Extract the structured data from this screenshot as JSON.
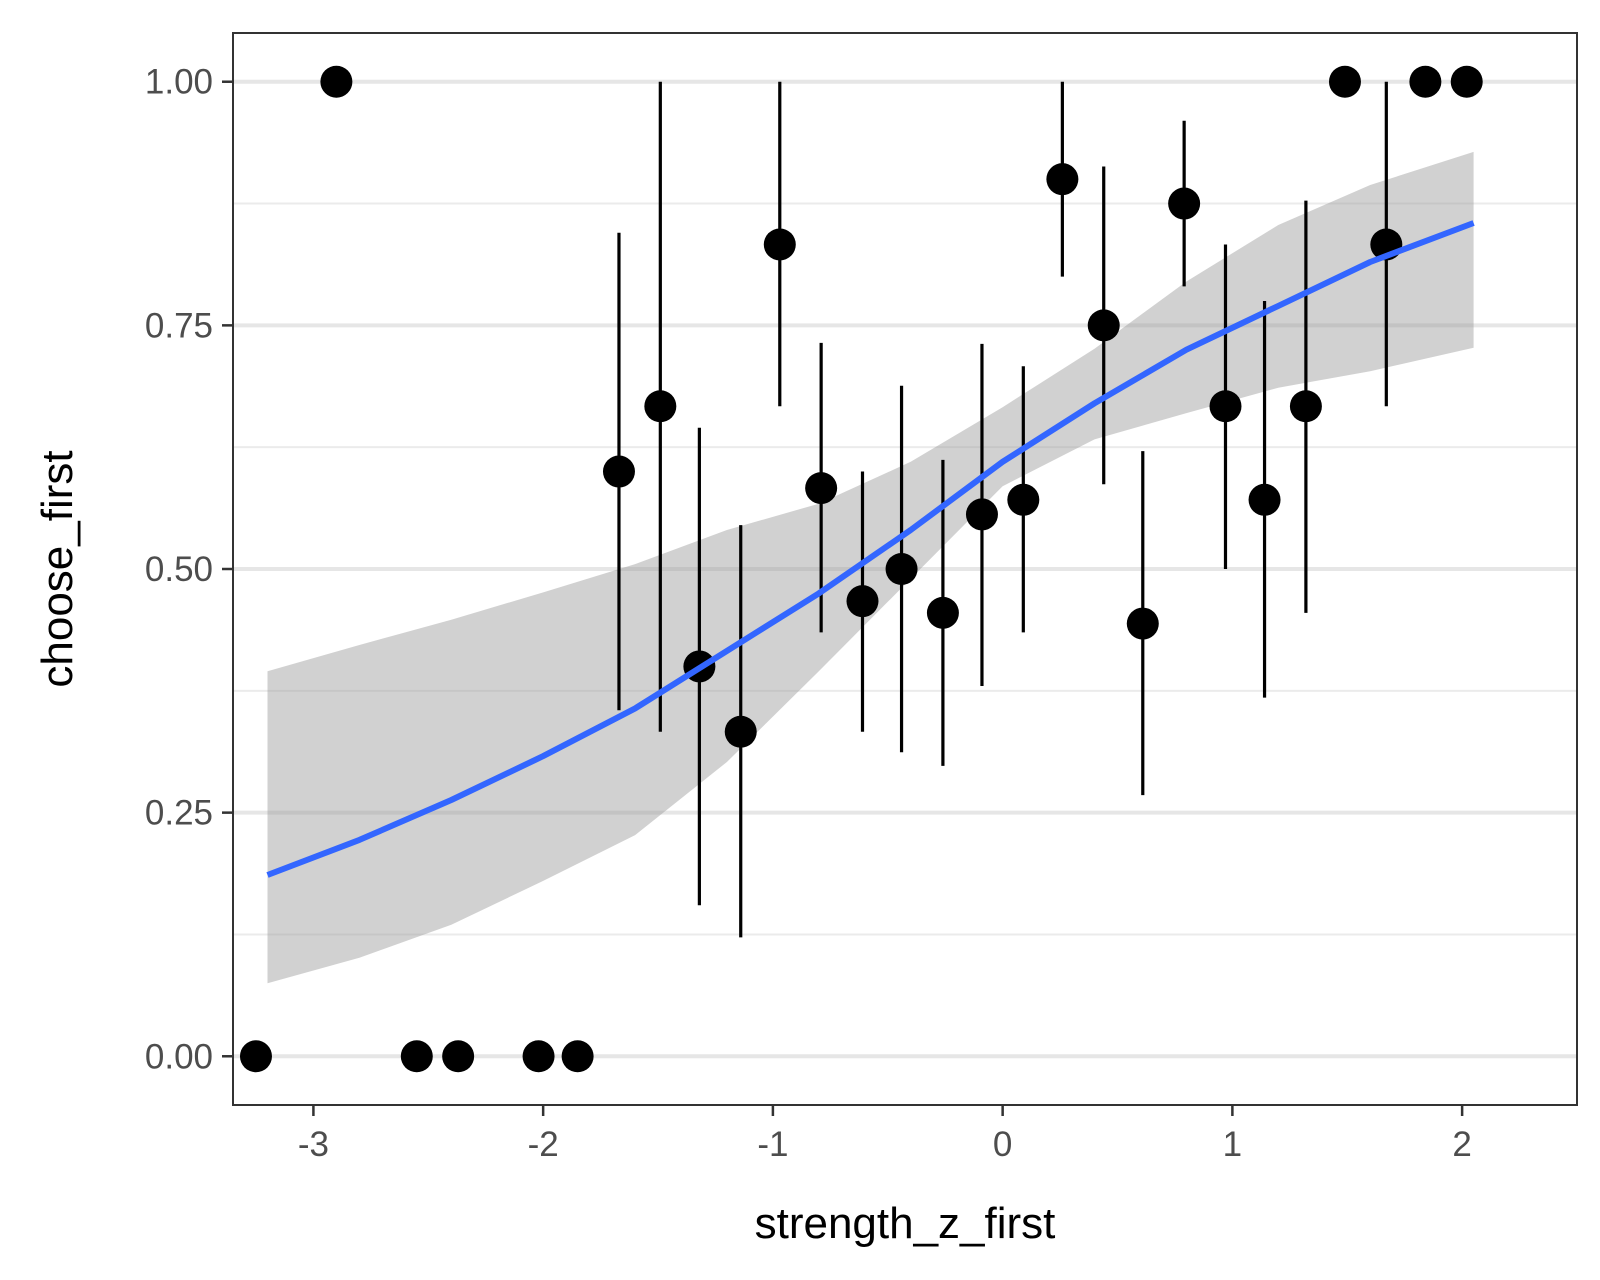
{
  "chart_data": {
    "type": "scatter",
    "title": "",
    "xlabel": "strength_z_first",
    "ylabel": "choose_first",
    "xlim": [
      -3.35,
      2.5
    ],
    "ylim": [
      -0.05,
      1.05
    ],
    "xticks": [
      -3,
      -2,
      -1,
      0,
      1,
      2
    ],
    "xtick_labels": [
      "-3",
      "-2",
      "-1",
      "0",
      "1",
      "2"
    ],
    "yticks": [
      0,
      0.25,
      0.5,
      0.75,
      1
    ],
    "ytick_labels": [
      "0.00",
      "0.25",
      "0.50",
      "0.75",
      "1.00"
    ],
    "minor_yticks": [
      0.125,
      0.375,
      0.625,
      0.875
    ],
    "grid": true,
    "theme": "bw",
    "points": [
      {
        "x": -3.25,
        "y": 0.0
      },
      {
        "x": -2.9,
        "y": 1.0
      },
      {
        "x": -2.55,
        "y": 0.0
      },
      {
        "x": -2.37,
        "y": 0.0
      },
      {
        "x": -2.02,
        "y": 0.0
      },
      {
        "x": -1.85,
        "y": 0.0
      },
      {
        "x": -1.67,
        "y": 0.6,
        "ymin": 0.355,
        "ymax": 0.845
      },
      {
        "x": -1.49,
        "y": 0.667,
        "ymin": 0.333,
        "ymax": 1.0
      },
      {
        "x": -1.32,
        "y": 0.4,
        "ymin": 0.155,
        "ymax": 0.645
      },
      {
        "x": -1.14,
        "y": 0.333,
        "ymin": 0.122,
        "ymax": 0.545
      },
      {
        "x": -0.97,
        "y": 0.833,
        "ymin": 0.667,
        "ymax": 1.0
      },
      {
        "x": -0.79,
        "y": 0.583,
        "ymin": 0.435,
        "ymax": 0.732
      },
      {
        "x": -0.61,
        "y": 0.467,
        "ymin": 0.333,
        "ymax": 0.6
      },
      {
        "x": -0.44,
        "y": 0.5,
        "ymin": 0.312,
        "ymax": 0.688
      },
      {
        "x": -0.26,
        "y": 0.455,
        "ymin": 0.298,
        "ymax": 0.612
      },
      {
        "x": -0.09,
        "y": 0.556,
        "ymin": 0.38,
        "ymax": 0.731
      },
      {
        "x": 0.09,
        "y": 0.571,
        "ymin": 0.435,
        "ymax": 0.708
      },
      {
        "x": 0.26,
        "y": 0.9,
        "ymin": 0.8,
        "ymax": 1.0
      },
      {
        "x": 0.44,
        "y": 0.75,
        "ymin": 0.587,
        "ymax": 0.913
      },
      {
        "x": 0.61,
        "y": 0.444,
        "ymin": 0.268,
        "ymax": 0.621
      },
      {
        "x": 0.79,
        "y": 0.875,
        "ymin": 0.79,
        "ymax": 0.96
      },
      {
        "x": 0.97,
        "y": 0.667,
        "ymin": 0.5,
        "ymax": 0.833
      },
      {
        "x": 1.14,
        "y": 0.571,
        "ymin": 0.368,
        "ymax": 0.775
      },
      {
        "x": 1.32,
        "y": 0.667,
        "ymin": 0.455,
        "ymax": 0.878
      },
      {
        "x": 1.49,
        "y": 1.0
      },
      {
        "x": 1.67,
        "y": 0.833,
        "ymin": 0.667,
        "ymax": 1.0
      },
      {
        "x": 1.84,
        "y": 1.0
      },
      {
        "x": 2.02,
        "y": 1.0
      }
    ],
    "fit": {
      "type": "logistic",
      "color": "#3366FF",
      "ribbon_color": "#999999",
      "x": [
        -3.2,
        -2.8,
        -2.4,
        -2.0,
        -1.6,
        -1.2,
        -0.8,
        -0.4,
        0.0,
        0.4,
        0.8,
        1.2,
        1.6,
        2.05
      ],
      "y": [
        0.186,
        0.222,
        0.263,
        0.308,
        0.357,
        0.416,
        0.475,
        0.54,
        0.61,
        0.67,
        0.725,
        0.77,
        0.815,
        0.855
      ],
      "lower": [
        0.075,
        0.101,
        0.135,
        0.18,
        0.227,
        0.302,
        0.395,
        0.49,
        0.585,
        0.633,
        0.66,
        0.686,
        0.703,
        0.727
      ],
      "upper": [
        0.395,
        0.422,
        0.448,
        0.476,
        0.505,
        0.54,
        0.567,
        0.61,
        0.666,
        0.726,
        0.795,
        0.853,
        0.894,
        0.928
      ]
    }
  }
}
